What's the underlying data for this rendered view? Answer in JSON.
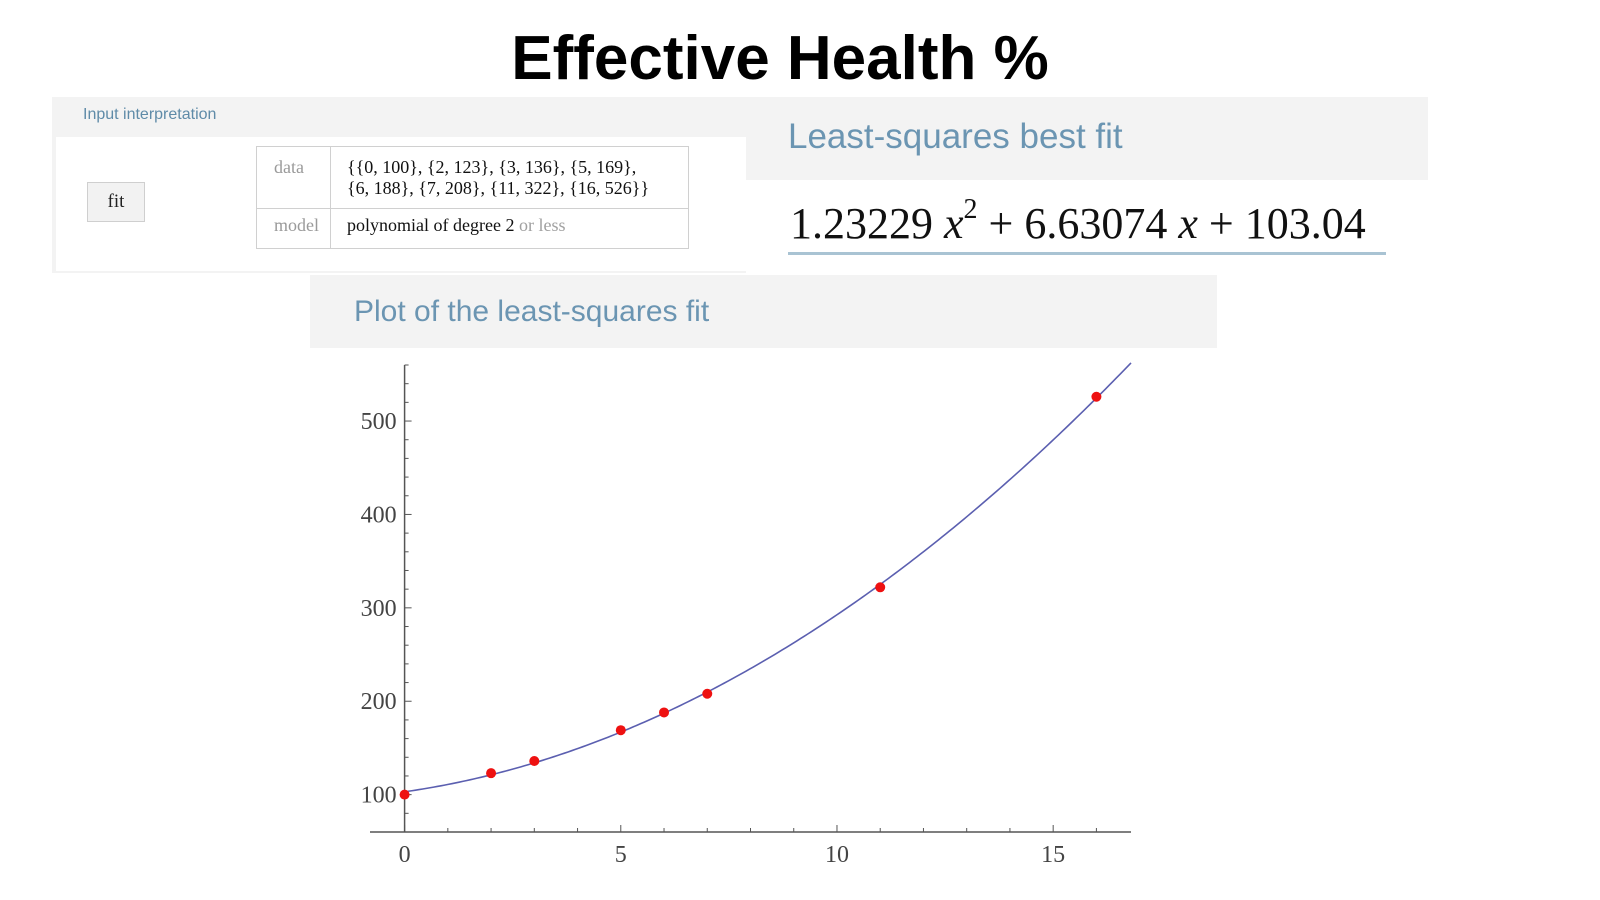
{
  "slide_title": "Effective Health %",
  "input_pod": {
    "label": "Input interpretation",
    "fit_button": "fit",
    "rows": [
      {
        "key": "data",
        "value_line1": "{{0, 100}, {2, 123}, {3, 136}, {5, 169},",
        "value_line2": "{6, 188}, {7, 208}, {11, 322}, {16, 526}}"
      },
      {
        "key": "model",
        "value_main": "polynomial of degree 2",
        "value_dim": "or less"
      }
    ]
  },
  "fit_pod": {
    "title": "Least-squares best fit",
    "formula": {
      "a": "1.23229",
      "x": "x",
      "power": "2",
      "plus1": "+ 6.63074",
      "plus2": "+ 103.04"
    }
  },
  "plot_pod": {
    "title": "Plot of the least-squares fit"
  },
  "colors": {
    "pod_title": "#6b95b2",
    "pod_bg": "#f3f3f3",
    "curve": "#5b5fb0",
    "points": "#ee1111",
    "axis": "#555555"
  },
  "chart_data": {
    "type": "scatter",
    "title": "",
    "xlabel": "",
    "ylabel": "",
    "xlim": [
      -0.8,
      16.8
    ],
    "ylim": [
      60,
      560
    ],
    "x_ticks": [
      0,
      5,
      10,
      15
    ],
    "y_ticks": [
      100,
      200,
      300,
      400,
      500
    ],
    "points": [
      {
        "x": 0,
        "y": 100
      },
      {
        "x": 2,
        "y": 123
      },
      {
        "x": 3,
        "y": 136
      },
      {
        "x": 5,
        "y": 169
      },
      {
        "x": 6,
        "y": 188
      },
      {
        "x": 7,
        "y": 208
      },
      {
        "x": 11,
        "y": 322
      },
      {
        "x": 16,
        "y": 526
      }
    ],
    "fit_curve": {
      "model": "quadratic",
      "coefficients": [
        103.04,
        6.63074,
        1.23229
      ],
      "x_range": [
        0,
        16.8
      ]
    },
    "grid": false,
    "legend": "none"
  }
}
